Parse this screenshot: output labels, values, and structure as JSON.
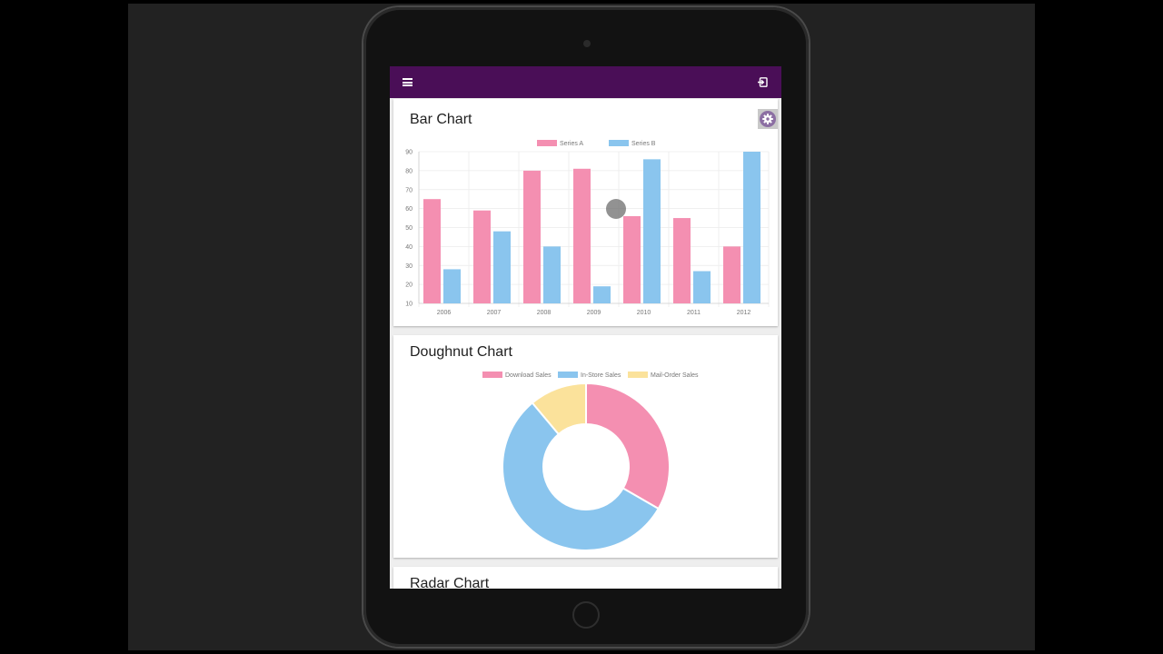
{
  "icons": {
    "menu": "menu-icon",
    "logout": "logout-icon",
    "settings": "gear-icon"
  },
  "colors": {
    "appbar": "#4a0e57",
    "pink": "#f48fb1",
    "blue": "#8ac5ee",
    "yellow": "#fbe29b",
    "fab": "#8c6fa3"
  },
  "cards": {
    "bar": {
      "title": "Bar Chart"
    },
    "doughnut": {
      "title": "Doughnut Chart"
    },
    "radar": {
      "title": "Radar Chart"
    }
  },
  "chart_data": [
    {
      "type": "bar",
      "title": "Bar Chart",
      "categories": [
        "2006",
        "2007",
        "2008",
        "2009",
        "2010",
        "2011",
        "2012"
      ],
      "series": [
        {
          "name": "Series A",
          "values": [
            65,
            59,
            80,
            81,
            56,
            55,
            40
          ],
          "color": "#f48fb1"
        },
        {
          "name": "Series B",
          "values": [
            28,
            48,
            40,
            19,
            86,
            27,
            90
          ],
          "color": "#8ac5ee"
        }
      ],
      "ylim": [
        10,
        90
      ],
      "yticks": [
        90,
        80,
        70,
        60,
        50,
        40,
        30,
        20,
        10
      ],
      "legend": "top",
      "grid": true
    },
    {
      "type": "pie",
      "title": "Doughnut Chart",
      "labels": [
        "Download Sales",
        "In-Store Sales",
        "Mail-Order Sales"
      ],
      "values": [
        300,
        500,
        100
      ],
      "colors": [
        "#f48fb1",
        "#8ac5ee",
        "#fbe29b"
      ],
      "legend": "top"
    }
  ]
}
